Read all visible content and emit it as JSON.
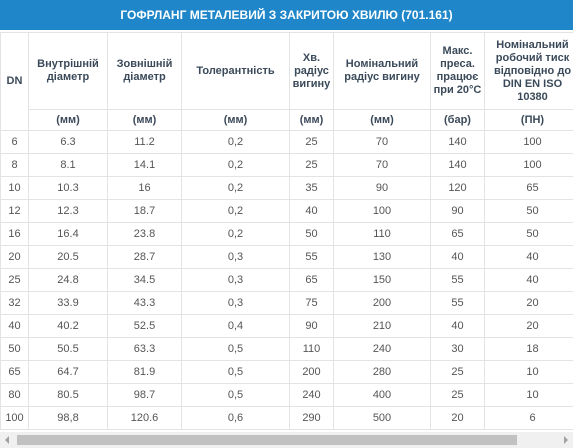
{
  "header": {
    "title": "ГОФРЛАНГ МЕТАЛЕВИЙ З ЗАКРИТОЮ ХВИЛЮ (701.161)"
  },
  "table": {
    "columns": [
      "DN",
      "Внутрішній діаметр",
      "Зовнішній діаметр",
      "Толерантність",
      "Хв. радіус вигину",
      "Номінальний радіус вигину",
      "Макс. преса. працює при 20°C",
      "Номінальний робочий тиск відповідно до DIN EN ISO 10380"
    ],
    "units": [
      "(мм)",
      "(мм)",
      "(мм)",
      "(мм)",
      "(мм)",
      "(бар)",
      "(ПН)"
    ],
    "rows": [
      [
        "6",
        "6.3",
        "11.2",
        "0,2",
        "25",
        "70",
        "140",
        "100"
      ],
      [
        "8",
        "8.1",
        "14.1",
        "0,2",
        "25",
        "70",
        "140",
        "100"
      ],
      [
        "10",
        "10.3",
        "16",
        "0,2",
        "35",
        "90",
        "120",
        "65"
      ],
      [
        "12",
        "12.3",
        "18.7",
        "0,2",
        "40",
        "100",
        "90",
        "50"
      ],
      [
        "16",
        "16.4",
        "23.8",
        "0,2",
        "50",
        "110",
        "65",
        "50"
      ],
      [
        "20",
        "20.5",
        "28.7",
        "0,3",
        "55",
        "130",
        "40",
        "40"
      ],
      [
        "25",
        "24.8",
        "34.5",
        "0,3",
        "65",
        "150",
        "55",
        "40"
      ],
      [
        "32",
        "33.9",
        "43.3",
        "0,3",
        "75",
        "200",
        "55",
        "20"
      ],
      [
        "40",
        "40.2",
        "52.5",
        "0,4",
        "90",
        "210",
        "40",
        "20"
      ],
      [
        "50",
        "50.5",
        "63.3",
        "0,5",
        "110",
        "240",
        "30",
        "18"
      ],
      [
        "65",
        "64.7",
        "81.9",
        "0,5",
        "200",
        "280",
        "25",
        "10"
      ],
      [
        "80",
        "80.5",
        "98.7",
        "0,5",
        "240",
        "400",
        "25",
        "10"
      ],
      [
        "100",
        "98,8",
        "120.6",
        "0,6",
        "290",
        "500",
        "20",
        "6"
      ]
    ]
  }
}
